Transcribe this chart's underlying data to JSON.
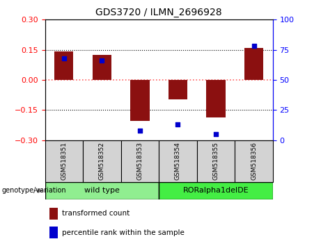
{
  "title": "GDS3720 / ILMN_2696928",
  "samples": [
    "GSM518351",
    "GSM518352",
    "GSM518353",
    "GSM518354",
    "GSM518355",
    "GSM518356"
  ],
  "bar_values": [
    0.143,
    0.125,
    -0.205,
    -0.095,
    -0.185,
    0.16
  ],
  "percentile_values": [
    68,
    66,
    8,
    13,
    5,
    78
  ],
  "bar_color": "#8B1010",
  "percentile_color": "#0000CD",
  "ylim_left": [
    -0.3,
    0.3
  ],
  "ylim_right": [
    0,
    100
  ],
  "yticks_left": [
    -0.3,
    -0.15,
    0,
    0.15,
    0.3
  ],
  "yticks_right": [
    0,
    25,
    50,
    75,
    100
  ],
  "hline_zero_color": "#FF6060",
  "hline_dotted_color": "#000000",
  "genotype_labels": [
    "wild type",
    "RORalpha1delDE"
  ],
  "genotype_color_wt": "#90EE90",
  "genotype_color_ror": "#44EE44",
  "legend_bar_label": "transformed count",
  "legend_pct_label": "percentile rank within the sample",
  "xlabel_label": "genotype/variation",
  "bar_width": 0.5,
  "background_color": "#ffffff"
}
